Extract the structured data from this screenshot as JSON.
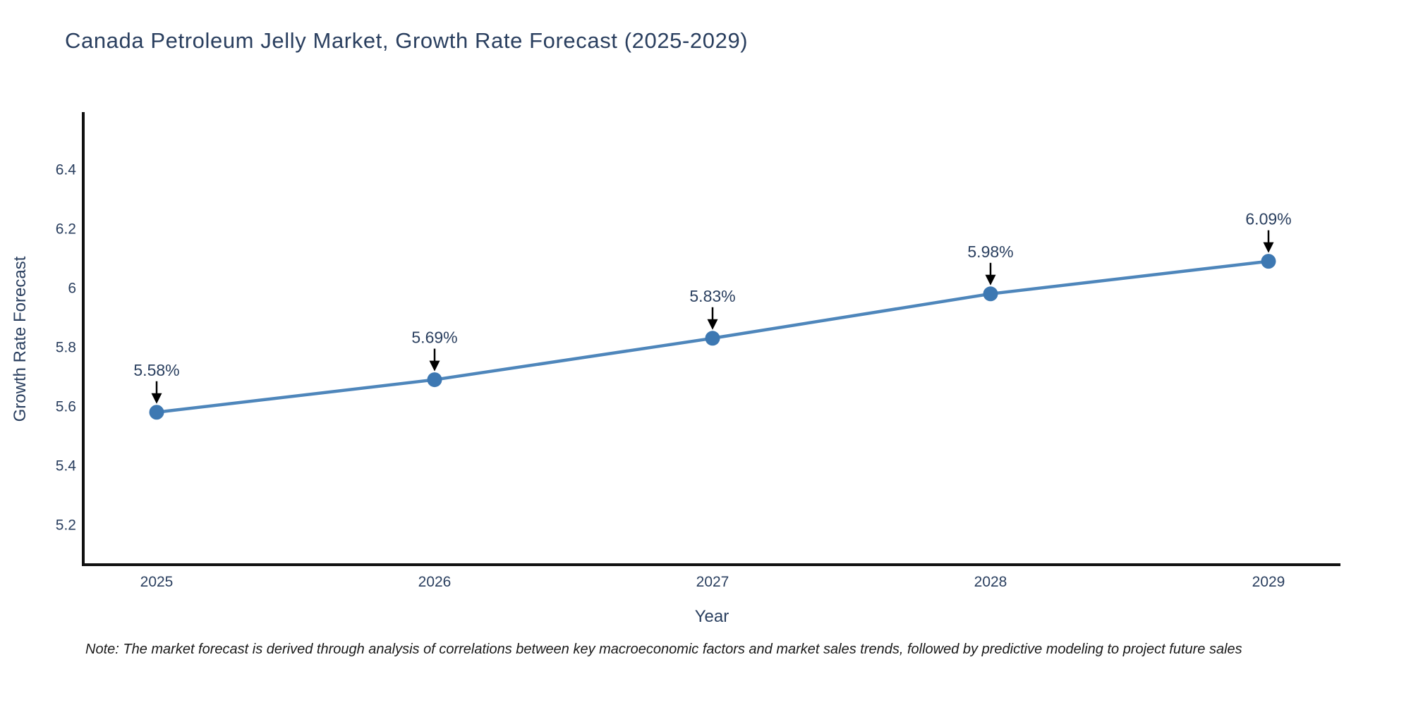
{
  "title": "Canada Petroleum Jelly Market, Growth Rate Forecast (2025-2029)",
  "note": "Note: The market forecast is derived through analysis of correlations between key macroeconomic factors and market sales trends, followed by predictive modeling to project future sales",
  "chart_data": {
    "type": "line",
    "title": "Canada Petroleum Jelly Market, Growth Rate Forecast (2025-2029)",
    "xlabel": "Year",
    "ylabel": "Growth Rate Forecast",
    "x": [
      2025,
      2026,
      2027,
      2028,
      2029
    ],
    "y": [
      5.58,
      5.69,
      5.83,
      5.98,
      6.09
    ],
    "point_labels": [
      "5.58%",
      "5.69%",
      "5.83%",
      "5.98%",
      "6.09%"
    ],
    "xtick_labels": [
      "2025",
      "2026",
      "2027",
      "2028",
      "2029"
    ],
    "ytick_values": [
      5.2,
      5.4,
      5.6,
      5.8,
      6,
      6.2,
      6.4
    ],
    "ytick_labels": [
      "5.2",
      "5.4",
      "5.6",
      "5.8",
      "6",
      "6.2",
      "6.4"
    ],
    "ylim": [
      5.065,
      6.594
    ],
    "grid": false,
    "legend": false,
    "colors": {
      "line": "#4e86bb",
      "marker": "#3d78b2",
      "axis": "#111111",
      "tick_text": "#2a3f5f",
      "annotation_text": "#2a3f5f",
      "annotation_arrow": "#000000",
      "background": "#ffffff"
    }
  }
}
